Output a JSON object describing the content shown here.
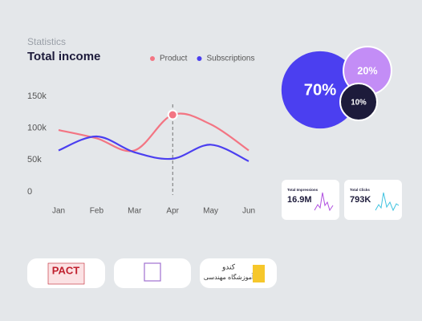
{
  "chart_data": [
    {
      "type": "line",
      "subtitle": "Statistics",
      "title": "Total income",
      "categories": [
        "Jan",
        "Feb",
        "Mar",
        "Apr",
        "May",
        "Jun"
      ],
      "series": [
        {
          "name": "Product",
          "color": "#f37583",
          "values": [
            97000,
            84000,
            65000,
            121000,
            106000,
            65000
          ]
        },
        {
          "name": "Subscriptions",
          "color": "#4b3ff0",
          "values": [
            65000,
            87000,
            62000,
            52000,
            74000,
            48000
          ]
        }
      ],
      "ylim": [
        0,
        150000
      ],
      "yticks": [
        {
          "value": 0,
          "label": "0"
        },
        {
          "value": 50000,
          "label": "50k"
        },
        {
          "value": 100000,
          "label": "100k"
        },
        {
          "value": 150000,
          "label": "150k"
        }
      ],
      "highlight": "Apr"
    },
    {
      "type": "bubble",
      "values": [
        70,
        20,
        10
      ],
      "value_labels": [
        "70%",
        "20%",
        "10%"
      ],
      "colors": [
        "#4b3ff0",
        "#c38df6",
        "#1d1b3b"
      ]
    }
  ],
  "cards": [
    {
      "label": "Total Impressions",
      "value": "16.9M"
    },
    {
      "label": "Total Clicks",
      "value": "793K"
    }
  ],
  "logos": [
    "PACT",
    "کندو",
    "آموزشگاه مهندسی"
  ]
}
